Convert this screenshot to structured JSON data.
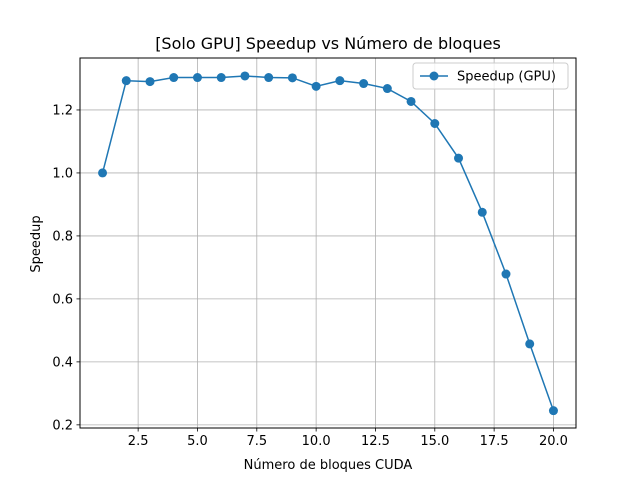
{
  "chart_data": {
    "type": "line",
    "title": "[Solo GPU] Speedup vs Número de bloques",
    "xlabel": "Número de bloques CUDA",
    "ylabel": "Speedup",
    "xlim": [
      0.05,
      20.95
    ],
    "ylim": [
      0.19,
      1.365
    ],
    "xticks": [
      2.5,
      5.0,
      7.5,
      10.0,
      12.5,
      15.0,
      17.5,
      20.0
    ],
    "xtick_labels": [
      "2.5",
      "5.0",
      "7.5",
      "10.0",
      "12.5",
      "15.0",
      "17.5",
      "20.0"
    ],
    "yticks": [
      0.2,
      0.4,
      0.6,
      0.8,
      1.0,
      1.2
    ],
    "ytick_labels": [
      "0.2",
      "0.4",
      "0.6",
      "0.8",
      "1.0",
      "1.2"
    ],
    "grid": true,
    "legend_position": "top-right",
    "series": [
      {
        "name": "Speedup (GPU)",
        "color": "#1f77b4",
        "marker": "circle",
        "x": [
          1,
          2,
          3,
          4,
          5,
          6,
          7,
          8,
          9,
          10,
          11,
          12,
          13,
          14,
          15,
          16,
          17,
          18,
          19,
          20
        ],
        "y": [
          1.0,
          1.293,
          1.29,
          1.303,
          1.303,
          1.303,
          1.308,
          1.303,
          1.302,
          1.275,
          1.293,
          1.284,
          1.268,
          1.227,
          1.157,
          1.047,
          0.875,
          0.679,
          0.457,
          0.245
        ]
      }
    ]
  }
}
